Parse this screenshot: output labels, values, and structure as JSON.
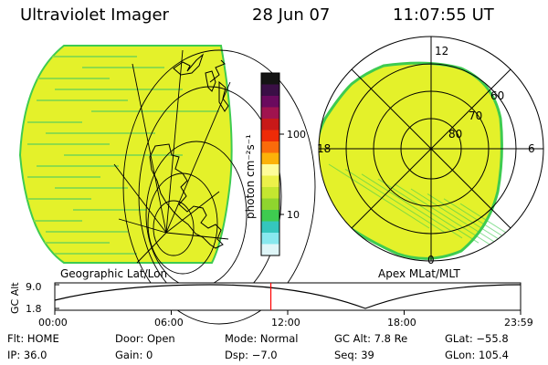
{
  "header": {
    "instrument": "Ultraviolet Imager",
    "date": "28 Jun 07",
    "time": "11:07:55 UT"
  },
  "colorbar": {
    "label": "photon cm⁻²s⁻¹",
    "ticks": [
      "100",
      "10"
    ],
    "colors": [
      "#141414",
      "#3a0f46",
      "#6a0a5e",
      "#a0134f",
      "#c81919",
      "#ee2b07",
      "#fa6b0b",
      "#fcb209",
      "#fefc9a",
      "#ecf14a",
      "#c4e730",
      "#8fd52e",
      "#3ecb50",
      "#35c6bd",
      "#88e8ee",
      "#dff6f8"
    ]
  },
  "left_panel": {
    "label": "Geographic Lat/Lon",
    "fill_color": "#e4f12a",
    "stripe_color": "#8fdc48"
  },
  "right_panel": {
    "label": "Apex MLat/MLT",
    "mlt_labels": [
      "12",
      "18",
      "6",
      "0"
    ],
    "mlat_labels": [
      "60",
      "70",
      "80"
    ],
    "fill_color": "#e4f12a",
    "edge_color": "#3ecb50"
  },
  "altitude_plot": {
    "ylabel": "GC Alt",
    "ytick_labels": [
      "9.0",
      "1.8"
    ],
    "xtick_labels": [
      "00:00",
      "06:00",
      "12:00",
      "18:00",
      "23:59"
    ],
    "ymin": 1.8,
    "ymax": 9.0,
    "current_time_fraction": 0.4638,
    "marker_color": "#ff0000"
  },
  "status": {
    "row1": [
      {
        "key": "Flt:",
        "value": "HOME"
      },
      {
        "key": "Door:",
        "value": "Open"
      },
      {
        "key": "Mode:",
        "value": "Normal"
      },
      {
        "key": "GC Alt:",
        "value": "7.8 Re"
      },
      {
        "key": "GLat:",
        "value": "−55.8"
      }
    ],
    "row2": [
      {
        "key": "IP:",
        "value": "36.0"
      },
      {
        "key": "Gain:",
        "value": "0"
      },
      {
        "key": "Dsp:",
        "value": "−7.0"
      },
      {
        "key": "Seq:",
        "value": "39"
      },
      {
        "key": "GLon:",
        "value": "105.4"
      }
    ]
  }
}
